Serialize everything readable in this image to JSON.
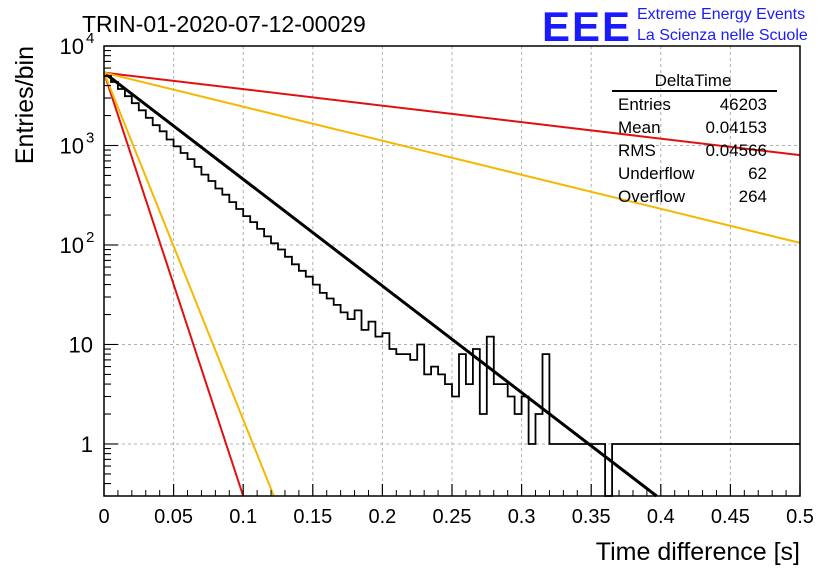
{
  "header": {
    "run_title": "TRIN-01-2020-07-12-00029",
    "logo_text": "EEE",
    "logo_line1": "Extreme Energy Events",
    "logo_line2": "La Scienza nelle Scuole"
  },
  "stats_box": {
    "name": "DeltaTime",
    "rows": [
      {
        "label": "Entries",
        "value": "46203"
      },
      {
        "label": "Mean",
        "value": "0.04153"
      },
      {
        "label": "RMS",
        "value": "0.04566"
      },
      {
        "label": "Underflow",
        "value": "62"
      },
      {
        "label": "Overflow",
        "value": "264"
      }
    ]
  },
  "colors": {
    "histogram": "#000000",
    "fit": "#000000",
    "red_band": "#e01010",
    "orange_band": "#f5b800",
    "logo_blue": "#1a1aff",
    "grid": "#b0b0b0"
  },
  "chart_data": {
    "type": "histogram",
    "title": "TRIN-01-2020-07-12-00029",
    "xlabel": "Time difference [s]",
    "ylabel": "Entries/bin",
    "xlim": [
      0,
      0.5
    ],
    "ylim": [
      0.3,
      10000
    ],
    "y_scale": "log",
    "grid": true,
    "x_ticks": [
      {
        "value": 0,
        "label": "0"
      },
      {
        "value": 0.05,
        "label": "0.05"
      },
      {
        "value": 0.1,
        "label": "0.1"
      },
      {
        "value": 0.15,
        "label": "0.15"
      },
      {
        "value": 0.2,
        "label": "0.2"
      },
      {
        "value": 0.25,
        "label": "0.25"
      },
      {
        "value": 0.3,
        "label": "0.3"
      },
      {
        "value": 0.35,
        "label": "0.35"
      },
      {
        "value": 0.4,
        "label": "0.4"
      },
      {
        "value": 0.45,
        "label": "0.45"
      },
      {
        "value": 0.5,
        "label": "0.5"
      }
    ],
    "y_ticks": [
      {
        "value": 1,
        "label": "1",
        "sup": ""
      },
      {
        "value": 10,
        "label": "10",
        "sup": ""
      },
      {
        "value": 100,
        "label": "10",
        "sup": "2"
      },
      {
        "value": 1000,
        "label": "10",
        "sup": "3"
      },
      {
        "value": 10000,
        "label": "10",
        "sup": "4"
      }
    ],
    "histogram": {
      "bin_width": 0.005,
      "counts": [
        5000,
        4350,
        3700,
        3130,
        2660,
        2260,
        1900,
        1600,
        1390,
        1150,
        980,
        840,
        730,
        610,
        510,
        440,
        370,
        320,
        270,
        230,
        195,
        170,
        145,
        122,
        104,
        90,
        76,
        64,
        55,
        48,
        40,
        33,
        29,
        25,
        21,
        18,
        22,
        14,
        17,
        12,
        13,
        9,
        8,
        8,
        7,
        10,
        5,
        6,
        5,
        4,
        3,
        8,
        4,
        9,
        2,
        12,
        4,
        4,
        3,
        2,
        3,
        1,
        2,
        8,
        1,
        1,
        1,
        1,
        1,
        1,
        1,
        1,
        0,
        1,
        1,
        1,
        1,
        1,
        1,
        1,
        1,
        1,
        1,
        1,
        1,
        1,
        1,
        1,
        1,
        1,
        1,
        1,
        1,
        1,
        1,
        1,
        1,
        1,
        1,
        1
      ]
    },
    "fit_curves": [
      {
        "color": "black",
        "x": [
          0,
          0.397
        ],
        "y": [
          5400,
          0.3
        ]
      },
      {
        "color": "red",
        "x": [
          0,
          0.5
        ],
        "y": [
          5400,
          800
        ]
      },
      {
        "color": "red",
        "x": [
          0,
          0.1
        ],
        "y": [
          5400,
          0.3
        ]
      },
      {
        "color": "orange",
        "x": [
          0,
          0.5
        ],
        "y": [
          5400,
          105
        ]
      },
      {
        "color": "orange",
        "x": [
          0,
          0.122
        ],
        "y": [
          5400,
          0.3
        ]
      }
    ]
  }
}
